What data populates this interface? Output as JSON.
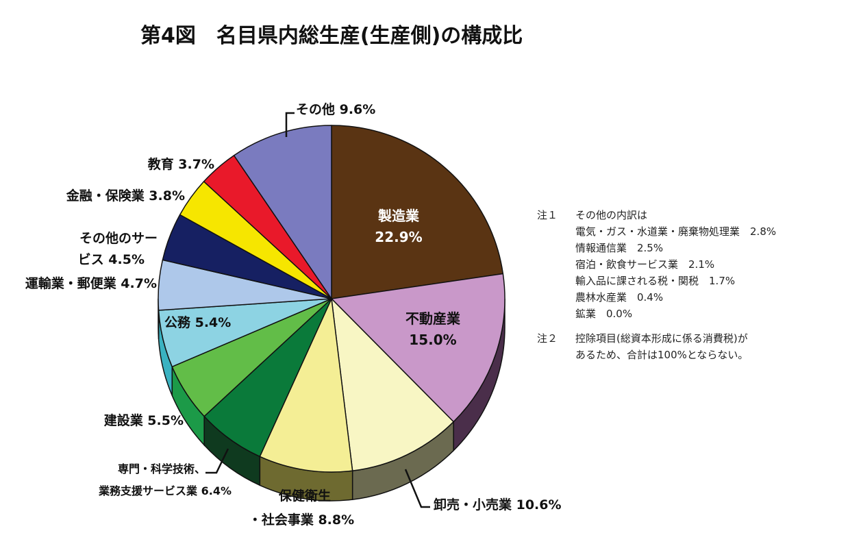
{
  "chart_data": {
    "type": "pie",
    "title": "第4図　名目県内総生産(生産側)の構成比",
    "slices": [
      {
        "label": "製造業",
        "value": 22.9,
        "value_text": "22.9%",
        "color": "#5a3413",
        "side": "#3a210b"
      },
      {
        "label": "不動産業",
        "value": 15.0,
        "value_text": "15.0%",
        "color": "#c998c9",
        "side": "#4a2e4a"
      },
      {
        "label": "卸売・小売業",
        "value": 10.6,
        "value_text": "10.6%",
        "color": "#f8f6c4",
        "side": "#6b6a50"
      },
      {
        "label": "保健衛生・社会事業",
        "value": 8.8,
        "value_text": "8.8%",
        "color": "#f4ee95",
        "side": "#6e6a30"
      },
      {
        "label": "専門・科学技術、業務支援サービス業",
        "value": 6.4,
        "value_text": "6.4%",
        "color": "#0a7a3a",
        "side": "#0f3a1f"
      },
      {
        "label": "建設業",
        "value": 5.5,
        "value_text": "5.5%",
        "color": "#62bd48",
        "side": "#1c9a48"
      },
      {
        "label": "公務",
        "value": 5.4,
        "value_text": "5.4%",
        "color": "#8dd3e3",
        "side": "#3ab2c1"
      },
      {
        "label": "運輸業・郵便業",
        "value": 4.7,
        "value_text": "4.7%",
        "color": "#aec8ea",
        "side": "#7d9cc8"
      },
      {
        "label": "その他のサービス",
        "value": 4.5,
        "value_text": "4.5%",
        "color": "#162062",
        "side": "#0c1440"
      },
      {
        "label": "金融・保険業",
        "value": 3.8,
        "value_text": "3.8%",
        "color": "#f6e600",
        "side": "#a79c00"
      },
      {
        "label": "教育",
        "value": 3.7,
        "value_text": "3.7%",
        "color": "#e9192a",
        "side": "#8a0e18"
      },
      {
        "label": "その他",
        "value": 9.6,
        "value_text": "9.6%",
        "color": "#7a7bbf",
        "side": "#4b4c8a"
      }
    ],
    "display_labels": {
      "seizo": [
        "製造業",
        "22.9%"
      ],
      "fudosan": [
        "不動産業",
        "15.0%"
      ],
      "oroshi": "卸売・小売業 10.6%",
      "hoken": [
        "保健衛生",
        "・社会事業 8.8%"
      ],
      "senmon": [
        "専門・科学技術、",
        "業務支援サービス業 6.4%"
      ],
      "kensetsu": "建設業 5.5%",
      "komu": "公務 5.4%",
      "unyu": "運輸業・郵便業 4.7%",
      "sonota_service": [
        "その他のサー",
        "ビス 4.5%"
      ],
      "kinyu": "金融・保険業 3.8%",
      "kyoiku": "教育 3.7%",
      "sonota": "その他 9.6%"
    }
  },
  "notes": {
    "note1": {
      "head": "注１",
      "lines": [
        "その他の内訳は",
        "電気・ガス・水道業・廃棄物処理業　2.8%",
        "情報通信業　2.5%",
        "宿泊・飲食サービス業　2.1%",
        "輸入品に課される税・関税　1.7%",
        "農林水産業　0.4%",
        "鉱業　0.0%"
      ]
    },
    "note2": {
      "head": "注２",
      "lines": [
        "控除項目(総資本形成に係る消費税)が",
        "あるため、合計は100%とならない。"
      ]
    }
  }
}
